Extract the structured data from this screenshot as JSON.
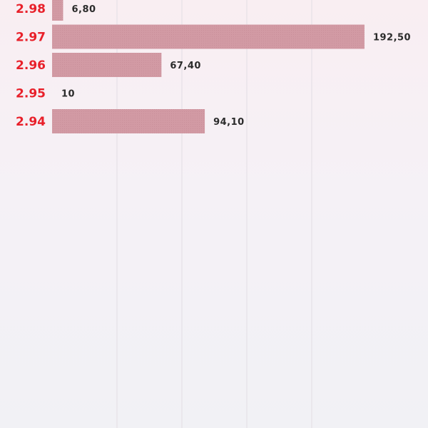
{
  "colors": {
    "bar": "#d29aa4",
    "category_label": "#e8202a",
    "value_label": "#2b2b2b",
    "grid": "#e2dde4",
    "background_top": "#f9eef2",
    "background_bottom": "#f1f1f5"
  },
  "chart_data": {
    "type": "bar",
    "orientation": "horizontal",
    "categories": [
      "2.98",
      "2.97",
      "2.96",
      "2.95",
      "2.94"
    ],
    "values": [
      6.8,
      192.5,
      67.4,
      10,
      94.1
    ],
    "value_labels": [
      "6,80",
      "192,50",
      "67,40",
      "10",
      "94,10"
    ],
    "xlim": [
      0,
      200
    ],
    "grid": true,
    "grid_orientation": "vertical",
    "title": "",
    "xlabel": "",
    "ylabel": ""
  }
}
